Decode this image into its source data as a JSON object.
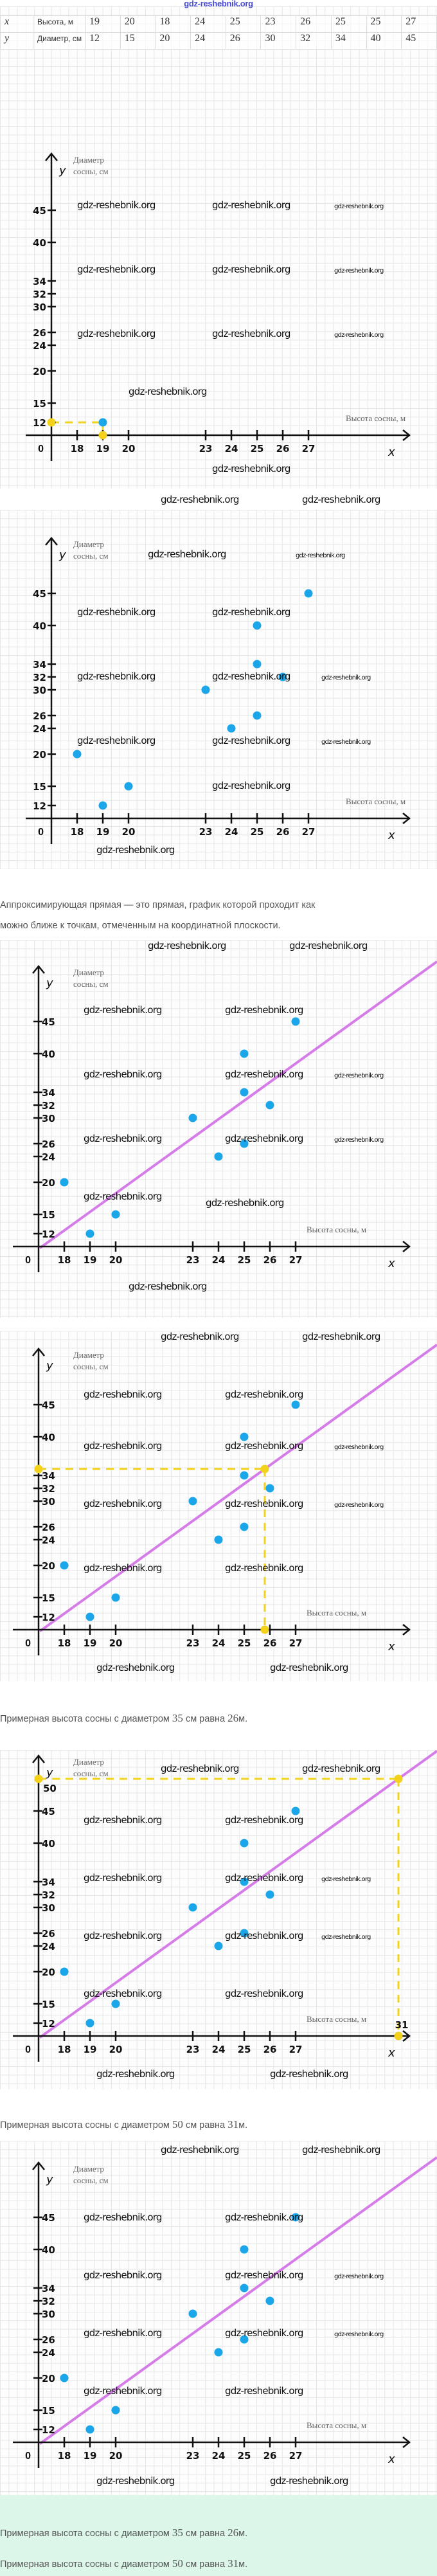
{
  "header": {
    "watermark": "gdz-reshebnik.org"
  },
  "watermark": "gdz-reshebnik.org",
  "table": {
    "rows": [
      {
        "var": "x",
        "label": "Высота, м",
        "values": [
          19,
          20,
          18,
          24,
          25,
          23,
          26,
          25,
          25,
          27
        ]
      },
      {
        "var": "y",
        "label": "Диаметр, см",
        "values": [
          12,
          15,
          20,
          24,
          26,
          30,
          32,
          34,
          40,
          45
        ]
      }
    ]
  },
  "texts": {
    "definition_line1": "Аппроксимирующая прямая — это прямая, график которой проходит как",
    "definition_line2": "можно ближе к точкам, отмеченным на координатной плоскости.",
    "answer_35": {
      "pre": "Примерная высота сосны с диаметром",
      "d": "35",
      "mid": "см равна",
      "h": "26",
      "post": "м."
    },
    "answer_50": {
      "pre": "Примерная высота сосны с диаметром",
      "d": "50",
      "mid": "см равна",
      "h": "31",
      "post": "м."
    }
  },
  "colors": {
    "point": "#1ba6ea",
    "trend": "#d57ce8",
    "guide": "#f3d21b",
    "axis": "#111111"
  },
  "chart_data": [
    {
      "type": "scatter",
      "ylabel": [
        "Диаметр",
        "сосны, см"
      ],
      "xlabel": "Высота сосны, м",
      "x_var": "x",
      "y_var": "y",
      "origin_label": "0",
      "x_ticks": [
        18,
        19,
        20,
        23,
        24,
        25,
        26,
        27
      ],
      "y_ticks": [
        12,
        15,
        20,
        24,
        26,
        30,
        32,
        34,
        40,
        45
      ],
      "points": [
        [
          19,
          12
        ]
      ],
      "trend_line": null,
      "guide": {
        "x": 19,
        "y": 12
      },
      "extra_x_tick": null,
      "extra_y_tick": null
    },
    {
      "type": "scatter",
      "ylabel": [
        "Диаметр",
        "сосны, см"
      ],
      "xlabel": "Высота сосны, м",
      "x_var": "x",
      "y_var": "y",
      "origin_label": "0",
      "x_ticks": [
        18,
        19,
        20,
        23,
        24,
        25,
        26,
        27
      ],
      "y_ticks": [
        12,
        15,
        20,
        24,
        26,
        30,
        32,
        34,
        40,
        45
      ],
      "points": [
        [
          19,
          12
        ],
        [
          20,
          15
        ],
        [
          18,
          20
        ],
        [
          24,
          24
        ],
        [
          25,
          26
        ],
        [
          23,
          30
        ],
        [
          26,
          32
        ],
        [
          25,
          34
        ],
        [
          25,
          40
        ],
        [
          27,
          45
        ]
      ],
      "trend_line": null,
      "guide": null,
      "extra_x_tick": null,
      "extra_y_tick": null
    },
    {
      "type": "scatter",
      "ylabel": [
        "Диаметр",
        "сосны, см"
      ],
      "xlabel": "Высота сосны, м",
      "x_var": "x",
      "y_var": "y",
      "origin_label": "0",
      "x_ticks": [
        18,
        19,
        20,
        23,
        24,
        25,
        26,
        27
      ],
      "y_ticks": [
        12,
        15,
        20,
        24,
        26,
        30,
        32,
        34,
        40,
        45
      ],
      "points": [
        [
          19,
          12
        ],
        [
          20,
          15
        ],
        [
          18,
          20
        ],
        [
          24,
          24
        ],
        [
          25,
          26
        ],
        [
          23,
          30
        ],
        [
          26,
          32
        ],
        [
          25,
          34
        ],
        [
          25,
          40
        ],
        [
          27,
          45
        ]
      ],
      "trend_line": [
        [
          25.8,
          35
        ],
        [
          31,
          50
        ]
      ],
      "guide": null,
      "extra_x_tick": null,
      "extra_y_tick": null
    },
    {
      "type": "scatter",
      "ylabel": [
        "Диаметр",
        "сосны, см"
      ],
      "xlabel": "Высота сосны, м",
      "x_var": "x",
      "y_var": "y",
      "origin_label": "0",
      "x_ticks": [
        18,
        19,
        20,
        23,
        24,
        25,
        26,
        27
      ],
      "y_ticks": [
        12,
        15,
        20,
        24,
        26,
        30,
        32,
        34,
        40,
        45
      ],
      "points": [
        [
          19,
          12
        ],
        [
          20,
          15
        ],
        [
          18,
          20
        ],
        [
          24,
          24
        ],
        [
          25,
          26
        ],
        [
          23,
          30
        ],
        [
          26,
          32
        ],
        [
          25,
          34
        ],
        [
          25,
          40
        ],
        [
          27,
          45
        ]
      ],
      "trend_line": [
        [
          25.8,
          35
        ],
        [
          31,
          50
        ]
      ],
      "guide": {
        "x": 25.8,
        "y": 35
      },
      "extra_x_tick": null,
      "extra_y_tick": null
    },
    {
      "type": "scatter",
      "ylabel": [
        "Диаметр",
        "сосны, см"
      ],
      "xlabel": "Высота сосны, м",
      "x_var": "x",
      "y_var": "y",
      "origin_label": "0",
      "x_ticks": [
        18,
        19,
        20,
        23,
        24,
        25,
        26,
        27
      ],
      "y_ticks": [
        12,
        15,
        20,
        24,
        26,
        30,
        32,
        34,
        40,
        45
      ],
      "points": [
        [
          19,
          12
        ],
        [
          20,
          15
        ],
        [
          18,
          20
        ],
        [
          24,
          24
        ],
        [
          25,
          26
        ],
        [
          23,
          30
        ],
        [
          26,
          32
        ],
        [
          25,
          34
        ],
        [
          25,
          40
        ],
        [
          27,
          45
        ]
      ],
      "trend_line": [
        [
          25.8,
          35
        ],
        [
          31,
          50
        ]
      ],
      "guide": {
        "x": 31,
        "y": 50
      },
      "extra_x_tick": "31",
      "extra_y_tick": "50"
    },
    {
      "type": "scatter",
      "ylabel": [
        "Диаметр",
        "сосны, см"
      ],
      "xlabel": "Высота сосны, м",
      "x_var": "x",
      "y_var": "y",
      "origin_label": "0",
      "x_ticks": [
        18,
        19,
        20,
        23,
        24,
        25,
        26,
        27
      ],
      "y_ticks": [
        12,
        15,
        20,
        24,
        26,
        30,
        32,
        34,
        40,
        45
      ],
      "points": [
        [
          19,
          12
        ],
        [
          20,
          15
        ],
        [
          18,
          20
        ],
        [
          24,
          24
        ],
        [
          25,
          26
        ],
        [
          23,
          30
        ],
        [
          26,
          32
        ],
        [
          25,
          34
        ],
        [
          25,
          40
        ],
        [
          27,
          45
        ]
      ],
      "trend_line": [
        [
          25.8,
          35
        ],
        [
          31,
          50
        ]
      ],
      "guide": null,
      "extra_x_tick": null,
      "extra_y_tick": null
    }
  ]
}
